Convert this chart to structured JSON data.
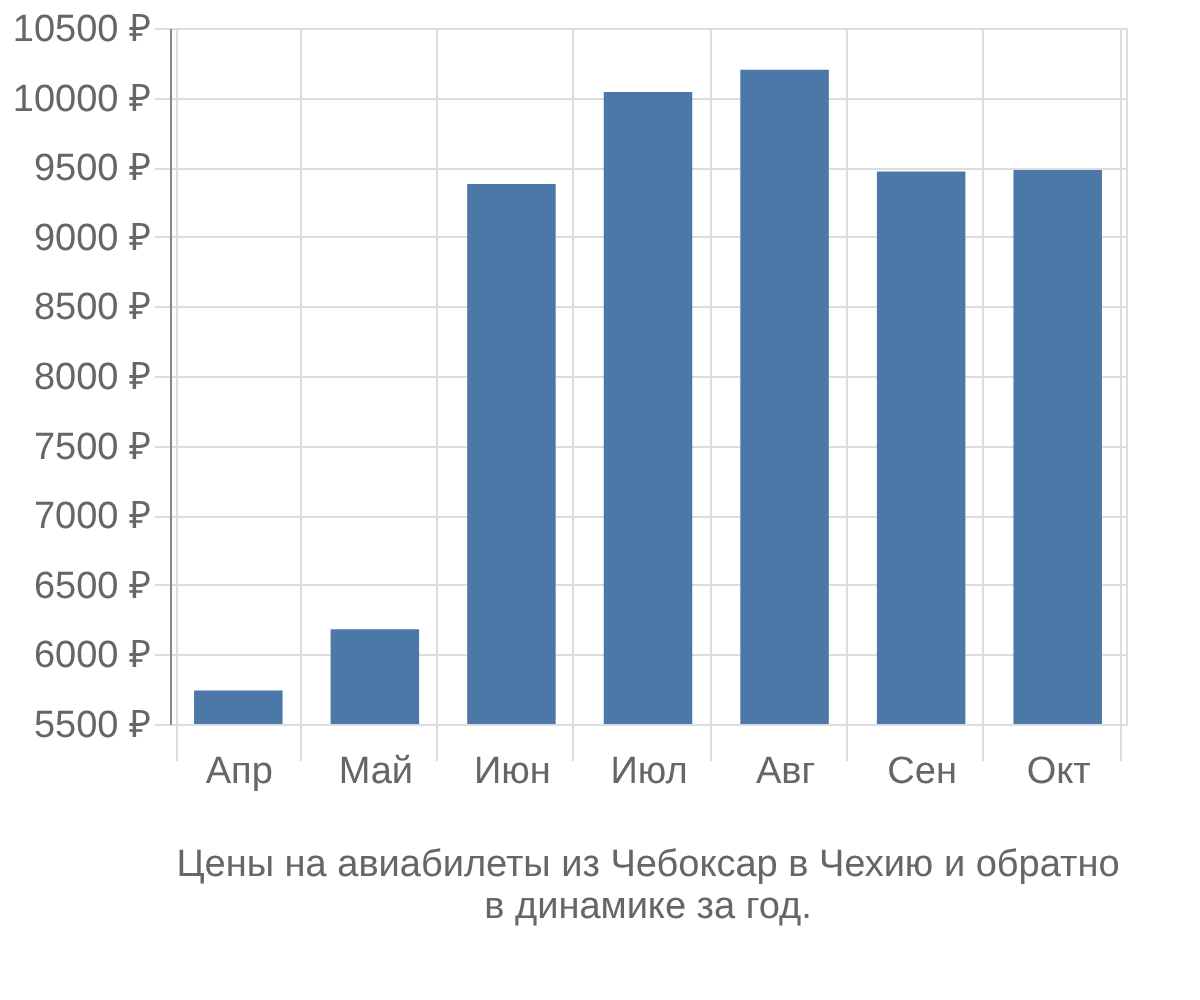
{
  "chart_data": {
    "type": "bar",
    "title": "Цены на авиабилеты из Чебоксар в Чехию и обратно\nв динамике за год.",
    "categories": [
      "Апр",
      "Май",
      "Июн",
      "Июл",
      "Авг",
      "Сен",
      "Окт"
    ],
    "values": [
      5740,
      6180,
      9380,
      10040,
      10200,
      9470,
      9480
    ],
    "color": "#4c78a8",
    "ylim": [
      5500,
      10500
    ],
    "yticks": [
      {
        "value": 5500,
        "label": "5500 ₽"
      },
      {
        "value": 6000,
        "label": "6000 ₽"
      },
      {
        "value": 6500,
        "label": "6500 ₽"
      },
      {
        "value": 7000,
        "label": "7000 ₽"
      },
      {
        "value": 7500,
        "label": "7500 ₽"
      },
      {
        "value": 8000,
        "label": "8000 ₽"
      },
      {
        "value": 8500,
        "label": "8500 ₽"
      },
      {
        "value": 9000,
        "label": "9000 ₽"
      },
      {
        "value": 9500,
        "label": "9500 ₽"
      },
      {
        "value": 10000,
        "label": "10000 ₽"
      },
      {
        "value": 10500,
        "label": "10500 ₽"
      }
    ],
    "grid": true
  }
}
